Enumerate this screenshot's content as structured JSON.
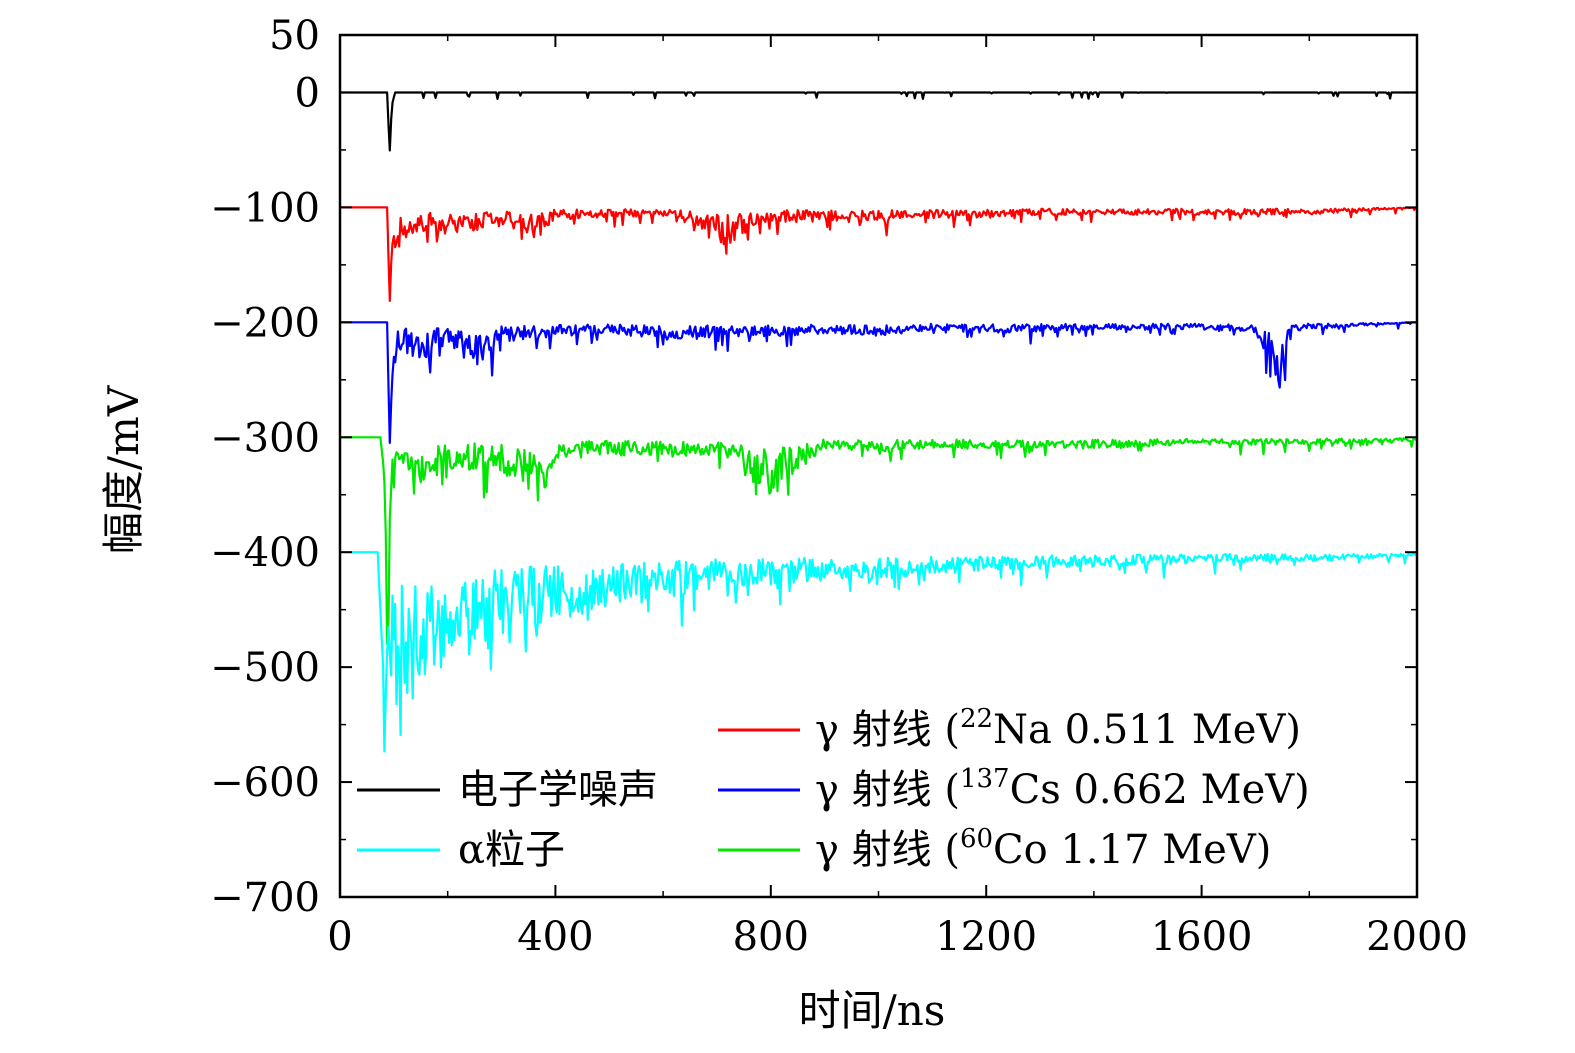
{
  "chart_data": {
    "type": "line",
    "title": "",
    "xlabel": "时间/ns",
    "ylabel": "幅度/mV",
    "xlim": [
      0,
      2000
    ],
    "ylim": [
      -700,
      50
    ],
    "xticks": [
      0,
      400,
      800,
      1200,
      1600,
      2000
    ],
    "xtick_labels": [
      "0",
      "400",
      "800",
      "1200",
      "1600",
      "2000"
    ],
    "yticks": [
      50,
      0,
      -100,
      -200,
      -300,
      -400,
      -500,
      -600,
      -700
    ],
    "ytick_labels": [
      "50",
      "0",
      "−100",
      "−200",
      "−300",
      "−400",
      "−500",
      "−600",
      "−700"
    ],
    "grid": false,
    "legend_position": "bottom",
    "series": [
      {
        "name": "电子学噪声",
        "legend_label": "电子学噪声",
        "color": "#000000",
        "baseline": 0,
        "x": [
          0,
          88,
          92,
          96,
          100,
          110,
          130,
          200,
          300,
          400,
          460,
          560,
          630,
          720,
          800,
          1000,
          1050,
          1160,
          1300,
          1400,
          1500,
          2000
        ],
        "y": [
          0,
          0,
          -56,
          -12,
          -4,
          -2,
          -2,
          -2,
          -3,
          -6,
          -2,
          -3,
          -5,
          -11,
          -3,
          -2,
          -6,
          -11,
          -6,
          -2,
          -2,
          0
        ]
      },
      {
        "name": "γ 射线 (22Na 0.511 MeV)",
        "legend_label": "γ 射线 (",
        "legend_sup": "22",
        "legend_rest": "Na 0.511 MeV)",
        "color": "#ff0000",
        "baseline": -100,
        "x": [
          0,
          88,
          92,
          96,
          100,
          110,
          130,
          160,
          200,
          260,
          300,
          370,
          400,
          500,
          600,
          720,
          800,
          900,
          1000,
          1100,
          1200,
          1300,
          1500,
          1700,
          1800,
          2000
        ],
        "y": [
          -100,
          -100,
          -188,
          -135,
          -125,
          -115,
          -118,
          -112,
          -115,
          -112,
          -110,
          -116,
          -106,
          -106,
          -104,
          -122,
          -108,
          -108,
          -108,
          -106,
          -106,
          -104,
          -104,
          -104,
          -104,
          -100
        ]
      },
      {
        "name": "γ 射线 (137Cs 0.662 MeV)",
        "legend_label": "γ 射线 (",
        "legend_sup": "137",
        "legend_rest": "Cs 0.662 MeV)",
        "color": "#0000ff",
        "baseline": -200,
        "x": [
          0,
          88,
          92,
          96,
          100,
          110,
          130,
          160,
          200,
          260,
          300,
          400,
          500,
          600,
          700,
          800,
          900,
          1000,
          1100,
          1200,
          1400,
          1600,
          1700,
          1750,
          1760,
          1800,
          2000
        ],
        "y": [
          -200,
          -200,
          -312,
          -255,
          -230,
          -215,
          -218,
          -220,
          -215,
          -225,
          -212,
          -208,
          -206,
          -210,
          -208,
          -208,
          -206,
          -208,
          -204,
          -206,
          -204,
          -204,
          -205,
          -240,
          -205,
          -204,
          -200
        ]
      },
      {
        "name": "γ 射线 (60Co 1.17 MeV)",
        "legend_label": "γ 射线 (",
        "legend_sup": "60",
        "legend_rest": "Co 1.17 MeV)",
        "color": "#00e600",
        "baseline": -300,
        "x": [
          0,
          75,
          82,
          88,
          92,
          96,
          110,
          150,
          200,
          300,
          370,
          400,
          500,
          600,
          700,
          800,
          900,
          1000,
          1100,
          1200,
          1300,
          1400,
          1600,
          1800,
          2000
        ],
        "y": [
          -300,
          -300,
          -330,
          -440,
          -360,
          -330,
          -312,
          -325,
          -318,
          -318,
          -340,
          -312,
          -310,
          -310,
          -310,
          -332,
          -306,
          -308,
          -306,
          -306,
          -306,
          -306,
          -304,
          -304,
          -302
        ]
      },
      {
        "name": "α粒子",
        "legend_label": "α粒子",
        "color": "#00ffff",
        "baseline": -400,
        "x": [
          0,
          70,
          78,
          85,
          90,
          100,
          120,
          150,
          200,
          250,
          300,
          400,
          500,
          600,
          700,
          800,
          900,
          1000,
          1100,
          1200,
          1400,
          1600,
          1700,
          1800,
          2000
        ],
        "y": [
          -400,
          -400,
          -480,
          -545,
          -470,
          -500,
          -480,
          -470,
          -462,
          -455,
          -445,
          -438,
          -432,
          -425,
          -420,
          -418,
          -415,
          -415,
          -412,
          -410,
          -408,
          -406,
          -405,
          -405,
          -402
        ]
      }
    ],
    "legend_entries": [
      "电子学噪声",
      "α粒子",
      "γ 射线 (22Na 0.511 MeV)",
      "γ 射线 (137Cs 0.662 MeV)",
      "γ 射线 (60Co 1.17 MeV)"
    ]
  }
}
